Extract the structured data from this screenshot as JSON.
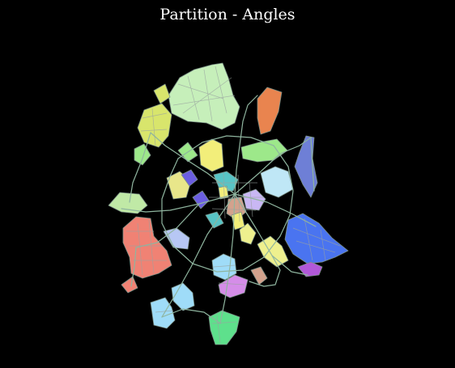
{
  "title": "Partition - Angles",
  "colors": {
    "background": "#000000",
    "title": "#ffffff",
    "road": "#8fb59f",
    "street": "#9aa3a0"
  },
  "partition": {
    "zone_colors": [
      "#c6efba",
      "#d8e56c",
      "#e9844f",
      "#9de88a",
      "#f2ee7a",
      "#6e7fd6",
      "#4a74f0",
      "#f08274",
      "#c0e9a6",
      "#b7c7f4",
      "#9fdcf8",
      "#5ee08c",
      "#d58de8",
      "#bfe7f6",
      "#eef08e",
      "#6b5ee0",
      "#58c4c6",
      "#c9b7f4",
      "#d3a28d",
      "#b158d8",
      "#e8e68a",
      "#f0a480",
      "#80a0c8",
      "#ffffff"
    ]
  }
}
